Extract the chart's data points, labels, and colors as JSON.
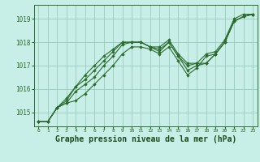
{
  "background_color": "#c8eee8",
  "grid_color": "#99ccbb",
  "line_color": "#2d6b2d",
  "marker_color": "#2d6b2d",
  "xlabel": "Graphe pression niveau de la mer (hPa)",
  "xlabel_color": "#1a4d1a",
  "xlabel_fontsize": 7,
  "xlim": [
    -0.5,
    23.5
  ],
  "ylim": [
    1014.4,
    1019.6
  ],
  "yticks": [
    1015,
    1016,
    1017,
    1018,
    1019
  ],
  "xticks": [
    0,
    1,
    2,
    3,
    4,
    5,
    6,
    7,
    8,
    9,
    10,
    11,
    12,
    13,
    14,
    15,
    16,
    17,
    18,
    19,
    20,
    21,
    22,
    23
  ],
  "lines": [
    [
      1014.6,
      1014.6,
      1015.2,
      1015.4,
      1015.5,
      1015.8,
      1016.2,
      1016.6,
      1017.0,
      1017.5,
      1017.8,
      1017.8,
      1017.7,
      1017.5,
      1017.8,
      1017.2,
      1016.6,
      1016.9,
      1017.4,
      1017.5,
      1018.0,
      1018.9,
      1019.1,
      1019.2
    ],
    [
      1014.6,
      1014.6,
      1015.2,
      1015.4,
      1015.9,
      1016.2,
      1016.5,
      1017.0,
      1017.4,
      1017.9,
      1018.0,
      1018.0,
      1017.8,
      1017.6,
      1018.0,
      1017.4,
      1016.8,
      1017.0,
      1017.1,
      1017.5,
      1018.0,
      1018.9,
      1019.1,
      1019.2
    ],
    [
      1014.6,
      1014.6,
      1015.2,
      1015.5,
      1016.1,
      1016.4,
      1016.8,
      1017.2,
      1017.6,
      1018.0,
      1018.0,
      1018.0,
      1017.8,
      1017.7,
      1018.0,
      1017.4,
      1017.0,
      1017.1,
      1017.1,
      1017.5,
      1018.0,
      1018.9,
      1019.1,
      1019.2
    ],
    [
      1014.6,
      1014.6,
      1015.2,
      1015.6,
      1016.1,
      1016.6,
      1017.0,
      1017.4,
      1017.7,
      1018.0,
      1018.0,
      1018.0,
      1017.8,
      1017.8,
      1018.1,
      1017.5,
      1017.1,
      1017.1,
      1017.5,
      1017.6,
      1018.1,
      1019.0,
      1019.2,
      1019.2
    ]
  ]
}
